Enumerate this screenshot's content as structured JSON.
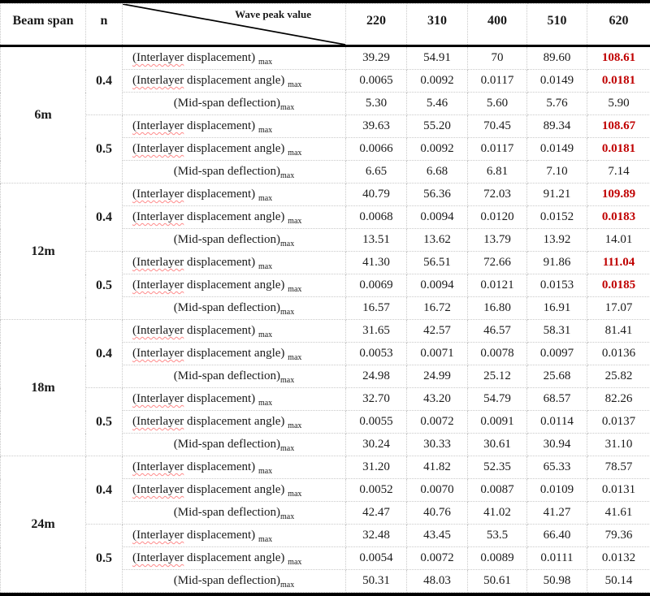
{
  "colors": {
    "accent_red": "#c00000",
    "squiggle_red": "#ff8a8a",
    "grid_line": "#c9c9c9",
    "frame_line": "#000000"
  },
  "table": {
    "header": {
      "beam_span": "Beam span",
      "n": "n",
      "diagonal_label": "Wave peak value",
      "wave_values": [
        "220",
        "310",
        "400",
        "510",
        "620"
      ]
    },
    "metrics": [
      {
        "squiggle": "(Interlayer",
        "text": " displacement) ",
        "sub": "max",
        "align": "left"
      },
      {
        "squiggle": "(Interlayer",
        "text": " displacement angle) ",
        "sub": "max",
        "align": "left"
      },
      {
        "squiggle": "",
        "text": "(Mid-span deflection)",
        "sub": "max",
        "align": "center"
      }
    ],
    "groups": [
      {
        "span": "6m",
        "subgroups": [
          {
            "n": "0.4",
            "rows": [
              {
                "metric": 0,
                "values": [
                  "39.29",
                  "54.91",
                  "70",
                  "89.60",
                  "108.61"
                ],
                "red_last": true
              },
              {
                "metric": 1,
                "values": [
                  "0.0065",
                  "0.0092",
                  "0.0117",
                  "0.0149",
                  "0.0181"
                ],
                "red_last": true
              },
              {
                "metric": 2,
                "values": [
                  "5.30",
                  "5.46",
                  "5.60",
                  "5.76",
                  "5.90"
                ],
                "red_last": false
              }
            ]
          },
          {
            "n": "0.5",
            "rows": [
              {
                "metric": 0,
                "values": [
                  "39.63",
                  "55.20",
                  "70.45",
                  "89.34",
                  "108.67"
                ],
                "red_last": true
              },
              {
                "metric": 1,
                "values": [
                  "0.0066",
                  "0.0092",
                  "0.0117",
                  "0.0149",
                  "0.0181"
                ],
                "red_last": true
              },
              {
                "metric": 2,
                "values": [
                  "6.65",
                  "6.68",
                  "6.81",
                  "7.10",
                  "7.14"
                ],
                "red_last": false
              }
            ]
          }
        ]
      },
      {
        "span": "12m",
        "subgroups": [
          {
            "n": "0.4",
            "rows": [
              {
                "metric": 0,
                "values": [
                  "40.79",
                  "56.36",
                  "72.03",
                  "91.21",
                  "109.89"
                ],
                "red_last": true
              },
              {
                "metric": 1,
                "values": [
                  "0.0068",
                  "0.0094",
                  "0.0120",
                  "0.0152",
                  "0.0183"
                ],
                "red_last": true
              },
              {
                "metric": 2,
                "values": [
                  "13.51",
                  "13.62",
                  "13.79",
                  "13.92",
                  "14.01"
                ],
                "red_last": false
              }
            ]
          },
          {
            "n": "0.5",
            "rows": [
              {
                "metric": 0,
                "values": [
                  "41.30",
                  "56.51",
                  "72.66",
                  "91.86",
                  "111.04"
                ],
                "red_last": true
              },
              {
                "metric": 1,
                "values": [
                  "0.0069",
                  "0.0094",
                  "0.0121",
                  "0.0153",
                  "0.0185"
                ],
                "red_last": true
              },
              {
                "metric": 2,
                "values": [
                  "16.57",
                  "16.72",
                  "16.80",
                  "16.91",
                  "17.07"
                ],
                "red_last": false
              }
            ]
          }
        ]
      },
      {
        "span": "18m",
        "subgroups": [
          {
            "n": "0.4",
            "rows": [
              {
                "metric": 0,
                "values": [
                  "31.65",
                  "42.57",
                  "46.57",
                  "58.31",
                  "81.41"
                ],
                "red_last": false
              },
              {
                "metric": 1,
                "values": [
                  "0.0053",
                  "0.0071",
                  "0.0078",
                  "0.0097",
                  "0.0136"
                ],
                "red_last": false
              },
              {
                "metric": 2,
                "values": [
                  "24.98",
                  "24.99",
                  "25.12",
                  "25.68",
                  "25.82"
                ],
                "red_last": false
              }
            ]
          },
          {
            "n": "0.5",
            "rows": [
              {
                "metric": 0,
                "values": [
                  "32.70",
                  "43.20",
                  "54.79",
                  "68.57",
                  "82.26"
                ],
                "red_last": false
              },
              {
                "metric": 1,
                "values": [
                  "0.0055",
                  "0.0072",
                  "0.0091",
                  "0.0114",
                  "0.0137"
                ],
                "red_last": false
              },
              {
                "metric": 2,
                "values": [
                  "30.24",
                  "30.33",
                  "30.61",
                  "30.94",
                  "31.10"
                ],
                "red_last": false
              }
            ]
          }
        ]
      },
      {
        "span": "24m",
        "subgroups": [
          {
            "n": "0.4",
            "rows": [
              {
                "metric": 0,
                "values": [
                  "31.20",
                  "41.82",
                  "52.35",
                  "65.33",
                  "78.57"
                ],
                "red_last": false
              },
              {
                "metric": 1,
                "values": [
                  "0.0052",
                  "0.0070",
                  "0.0087",
                  "0.0109",
                  "0.0131"
                ],
                "red_last": false
              },
              {
                "metric": 2,
                "values": [
                  "42.47",
                  "40.76",
                  "41.02",
                  "41.27",
                  "41.61"
                ],
                "red_last": false
              }
            ]
          },
          {
            "n": "0.5",
            "rows": [
              {
                "metric": 0,
                "values": [
                  "32.48",
                  "43.45",
                  "53.5",
                  "66.40",
                  "79.36"
                ],
                "red_last": false
              },
              {
                "metric": 1,
                "values": [
                  "0.0054",
                  "0.0072",
                  "0.0089",
                  "0.0111",
                  "0.0132"
                ],
                "red_last": false
              },
              {
                "metric": 2,
                "values": [
                  "50.31",
                  "48.03",
                  "50.61",
                  "50.98",
                  "50.14"
                ],
                "red_last": false
              }
            ]
          }
        ]
      }
    ]
  }
}
